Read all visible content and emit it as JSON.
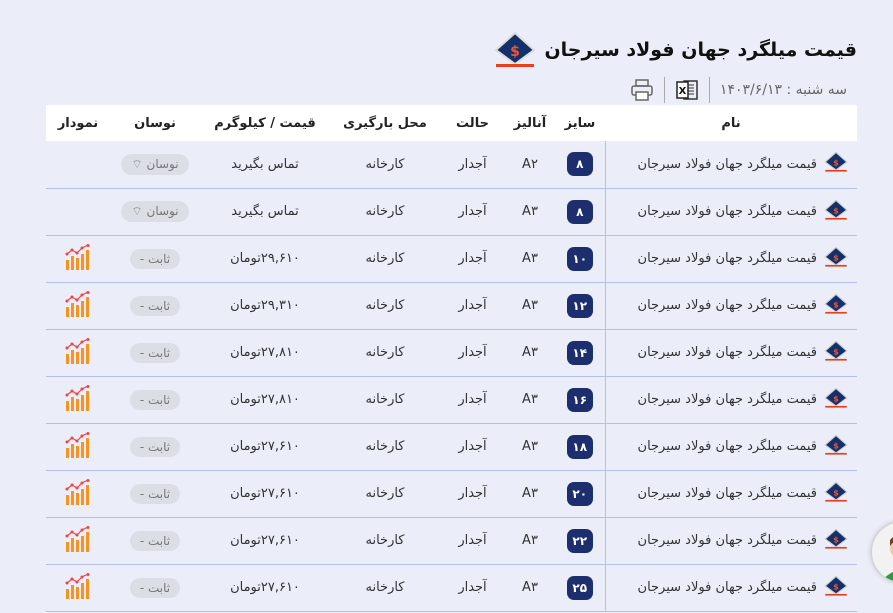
{
  "header": {
    "title": "قیمت میلگرد جهان فولاد سیرجان",
    "date": "سه شنبه : ۱۴۰۳/۶/۱۳",
    "logo_text": "Sirjan Jahan Steel Company"
  },
  "toolbar": {
    "excel_icon": "excel-icon",
    "print_icon": "printer-icon"
  },
  "columns": [
    "نام",
    "سایز",
    "آنالیز",
    "حالت",
    "محل بارگیری",
    "قیمت / کیلوگرم",
    "نوسان",
    "نمودار"
  ],
  "rows": [
    {
      "name": "قیمت میلگرد جهان فولاد سیرجان",
      "size": "۸",
      "analysis": "A۲",
      "state": "آجدار",
      "location": "کارخانه",
      "price": "تماس بگیرید",
      "change": "نوسان ⌔",
      "chart": false
    },
    {
      "name": "قیمت میلگرد جهان فولاد سیرجان",
      "size": "۸",
      "analysis": "A۳",
      "state": "آجدار",
      "location": "کارخانه",
      "price": "تماس بگیرید",
      "change": "نوسان ⌔",
      "chart": false
    },
    {
      "name": "قیمت میلگرد جهان فولاد سیرجان",
      "size": "۱۰",
      "analysis": "A۳",
      "state": "آجدار",
      "location": "کارخانه",
      "price": "۲۹,۶۱۰تومان",
      "change": "ثابت -",
      "chart": true
    },
    {
      "name": "قیمت میلگرد جهان فولاد سیرجان",
      "size": "۱۲",
      "analysis": "A۳",
      "state": "آجدار",
      "location": "کارخانه",
      "price": "۲۹,۳۱۰تومان",
      "change": "ثابت -",
      "chart": true
    },
    {
      "name": "قیمت میلگرد جهان فولاد سیرجان",
      "size": "۱۴",
      "analysis": "A۳",
      "state": "آجدار",
      "location": "کارخانه",
      "price": "۲۷,۸۱۰تومان",
      "change": "ثابت -",
      "chart": true
    },
    {
      "name": "قیمت میلگرد جهان فولاد سیرجان",
      "size": "۱۶",
      "analysis": "A۳",
      "state": "آجدار",
      "location": "کارخانه",
      "price": "۲۷,۸۱۰تومان",
      "change": "ثابت -",
      "chart": true
    },
    {
      "name": "قیمت میلگرد جهان فولاد سیرجان",
      "size": "۱۸",
      "analysis": "A۳",
      "state": "آجدار",
      "location": "کارخانه",
      "price": "۲۷,۶۱۰تومان",
      "change": "ثابت -",
      "chart": true
    },
    {
      "name": "قیمت میلگرد جهان فولاد سیرجان",
      "size": "۲۰",
      "analysis": "A۳",
      "state": "آجدار",
      "location": "کارخانه",
      "price": "۲۷,۶۱۰تومان",
      "change": "ثابت -",
      "chart": true
    },
    {
      "name": "قیمت میلگرد جهان فولاد سیرجان",
      "size": "۲۲",
      "analysis": "A۳",
      "state": "آجدار",
      "location": "کارخانه",
      "price": "۲۷,۶۱۰تومان",
      "change": "ثابت -",
      "chart": true
    },
    {
      "name": "قیمت میلگرد جهان فولاد سیرجان",
      "size": "۲۵",
      "analysis": "A۳",
      "state": "آجدار",
      "location": "کارخانه",
      "price": "۲۷,۶۱۰تومان",
      "change": "ثابت -",
      "chart": true
    }
  ],
  "colors": {
    "size_badge": "#1d2e6e",
    "chart_icon": "#f7931e",
    "row_border": "#b6bfe6",
    "background": "#ebeef8"
  }
}
